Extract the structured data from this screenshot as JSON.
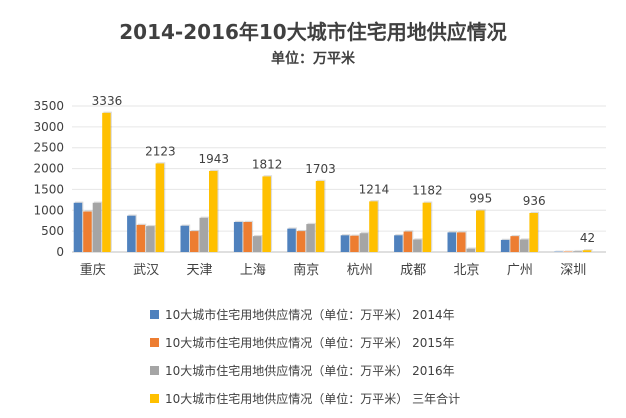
{
  "chart_data": {
    "type": "bar",
    "title": "2014-2016年10大城市住宅用地供应情况",
    "subtitle": "单位：万平米",
    "categories": [
      "重庆",
      "武汉",
      "天津",
      "上海",
      "南京",
      "杭州",
      "成都",
      "北京",
      "广州",
      "深圳"
    ],
    "series": [
      {
        "name": "10大城市住宅用地供应情况（单位：万平米） 2014年",
        "color": "#4F81BD",
        "values": [
          1180,
          870,
          630,
          720,
          560,
          400,
          400,
          470,
          290,
          10
        ]
      },
      {
        "name": "10大城市住宅用地供应情况（单位：万平米） 2015年",
        "color": "#ED7D31",
        "values": [
          970,
          650,
          500,
          720,
          500,
          390,
          490,
          470,
          380,
          12
        ]
      },
      {
        "name": "10大城市住宅用地供应情况（单位：万平米） 2016年",
        "color": "#A5A5A5",
        "values": [
          1180,
          620,
          820,
          380,
          670,
          450,
          300,
          80,
          300,
          20
        ]
      },
      {
        "name": "10大城市住宅用地供应情况（单位：万平米） 三年合计",
        "color": "#FFC000",
        "values": [
          3336,
          2123,
          1943,
          1812,
          1703,
          1214,
          1182,
          995,
          936,
          42
        ],
        "labels": [
          "3336",
          "2123",
          "1943",
          "1812",
          "1703",
          "1214",
          "1182",
          "995",
          "936",
          "42"
        ]
      }
    ],
    "ylim": [
      0,
      3500
    ],
    "yticks": [
      0,
      500,
      1000,
      1500,
      2000,
      2500,
      3000,
      3500
    ],
    "grid": true,
    "legend": "bottom"
  }
}
